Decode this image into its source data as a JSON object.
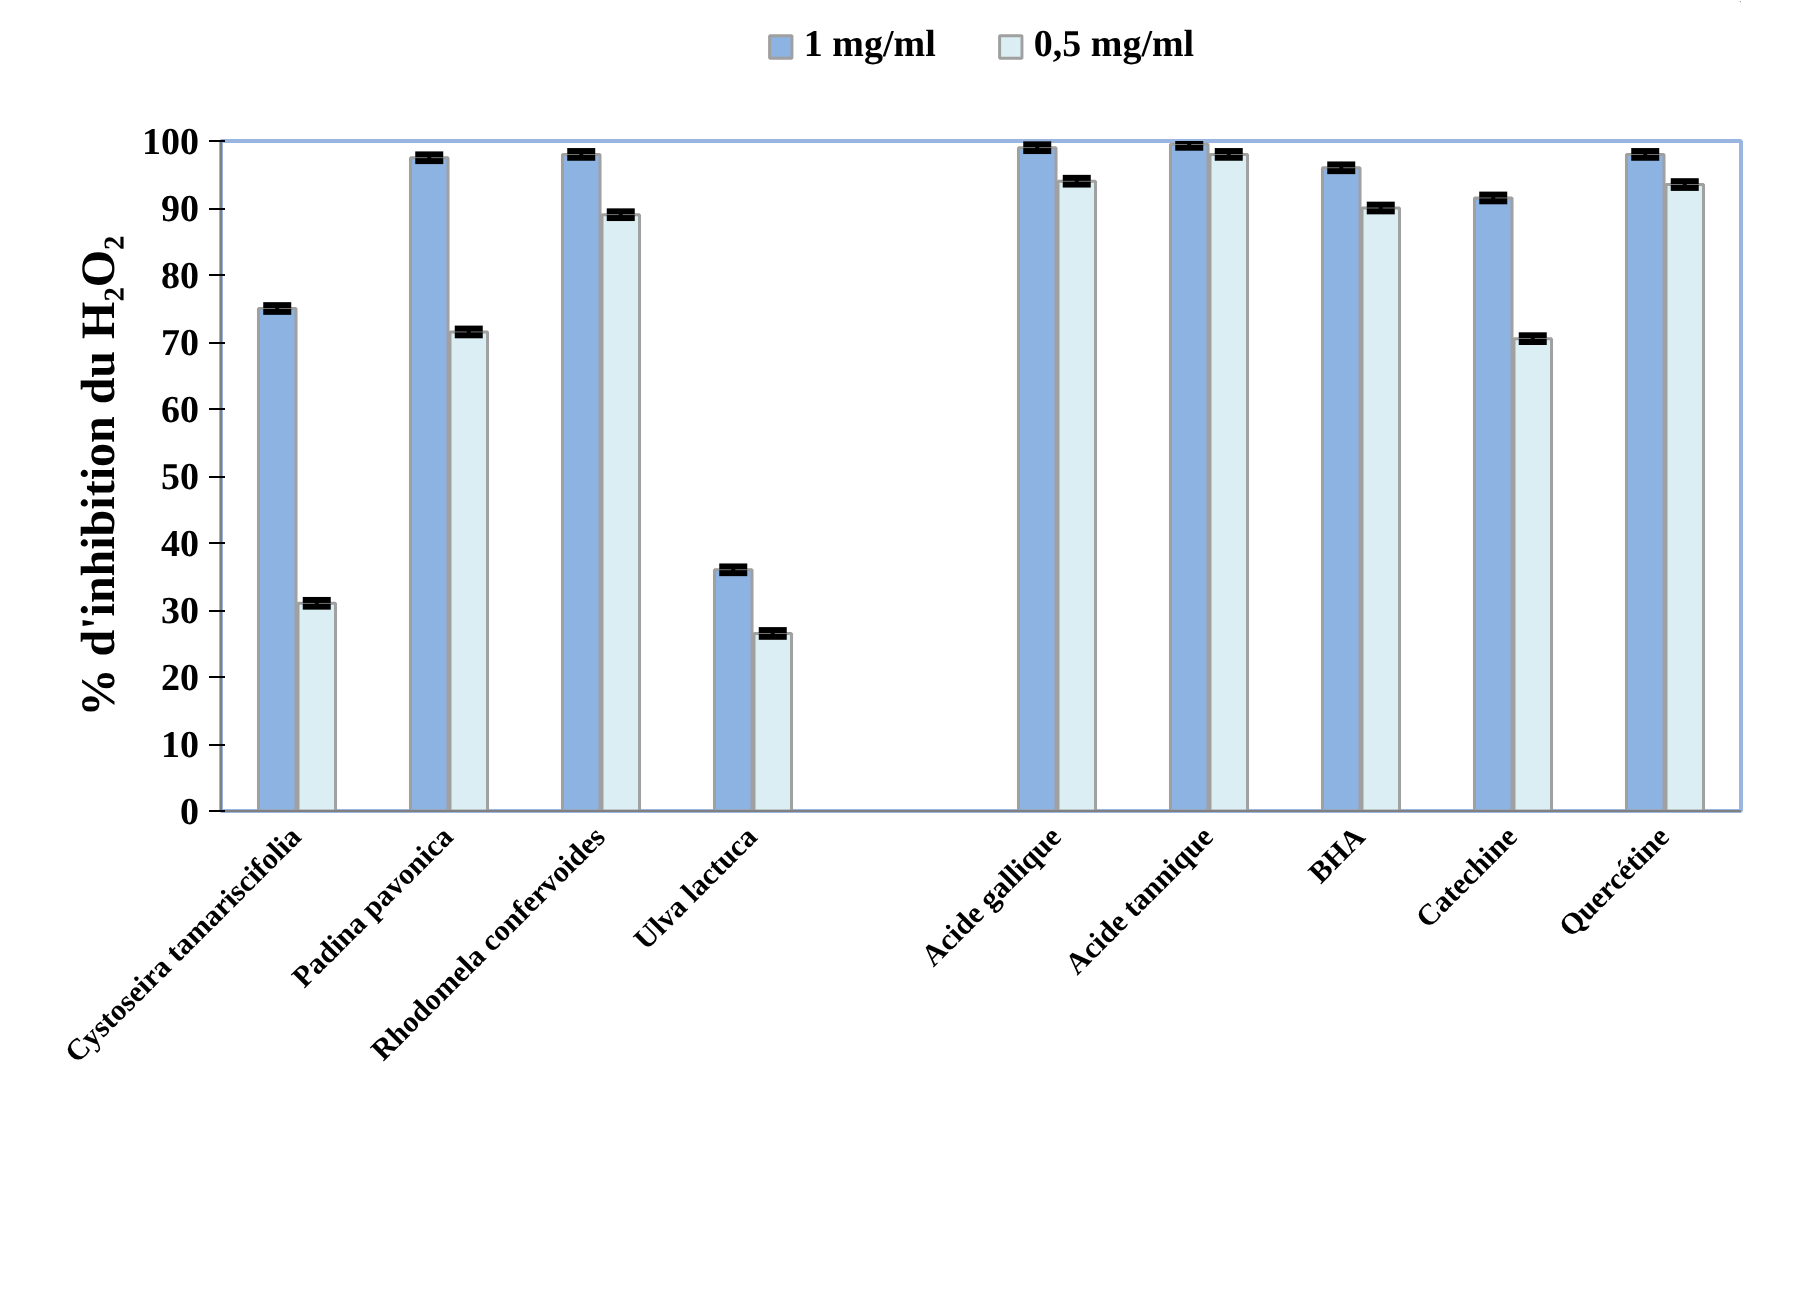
{
  "chart_data": {
    "type": "bar",
    "ylabel": "% d'inhibition du H₂O₂",
    "categories": [
      "Cystoseira tamariscifolia",
      "Padina pavonica",
      "Rhodomela confervoides",
      "Ulva lactuca",
      null,
      "Acide gallique",
      "Acide tannique",
      "BHA",
      "Catechine",
      "Quercétine"
    ],
    "series": [
      {
        "name": "1 mg/ml",
        "color": "#8db3e2",
        "values": [
          75,
          97.5,
          98,
          36,
          null,
          99,
          99.5,
          96,
          91.5,
          98
        ],
        "errors": [
          0.5,
          0.5,
          0.5,
          0.5,
          null,
          0.5,
          0.5,
          0.5,
          0.5,
          0.5
        ]
      },
      {
        "name": "0,5 mg/ml",
        "color": "#dbeef4",
        "values": [
          31,
          71.5,
          89,
          26.5,
          null,
          94,
          98,
          90,
          70.5,
          93.5
        ],
        "errors": [
          0.5,
          0.5,
          0.5,
          0.5,
          null,
          0.5,
          0.5,
          0.5,
          0.5,
          0.5
        ]
      }
    ],
    "ylim": [
      0,
      100
    ],
    "yticks": [
      0,
      10,
      20,
      30,
      40,
      50,
      60,
      70,
      80,
      90,
      100
    ],
    "grid": false,
    "legend": "top"
  }
}
